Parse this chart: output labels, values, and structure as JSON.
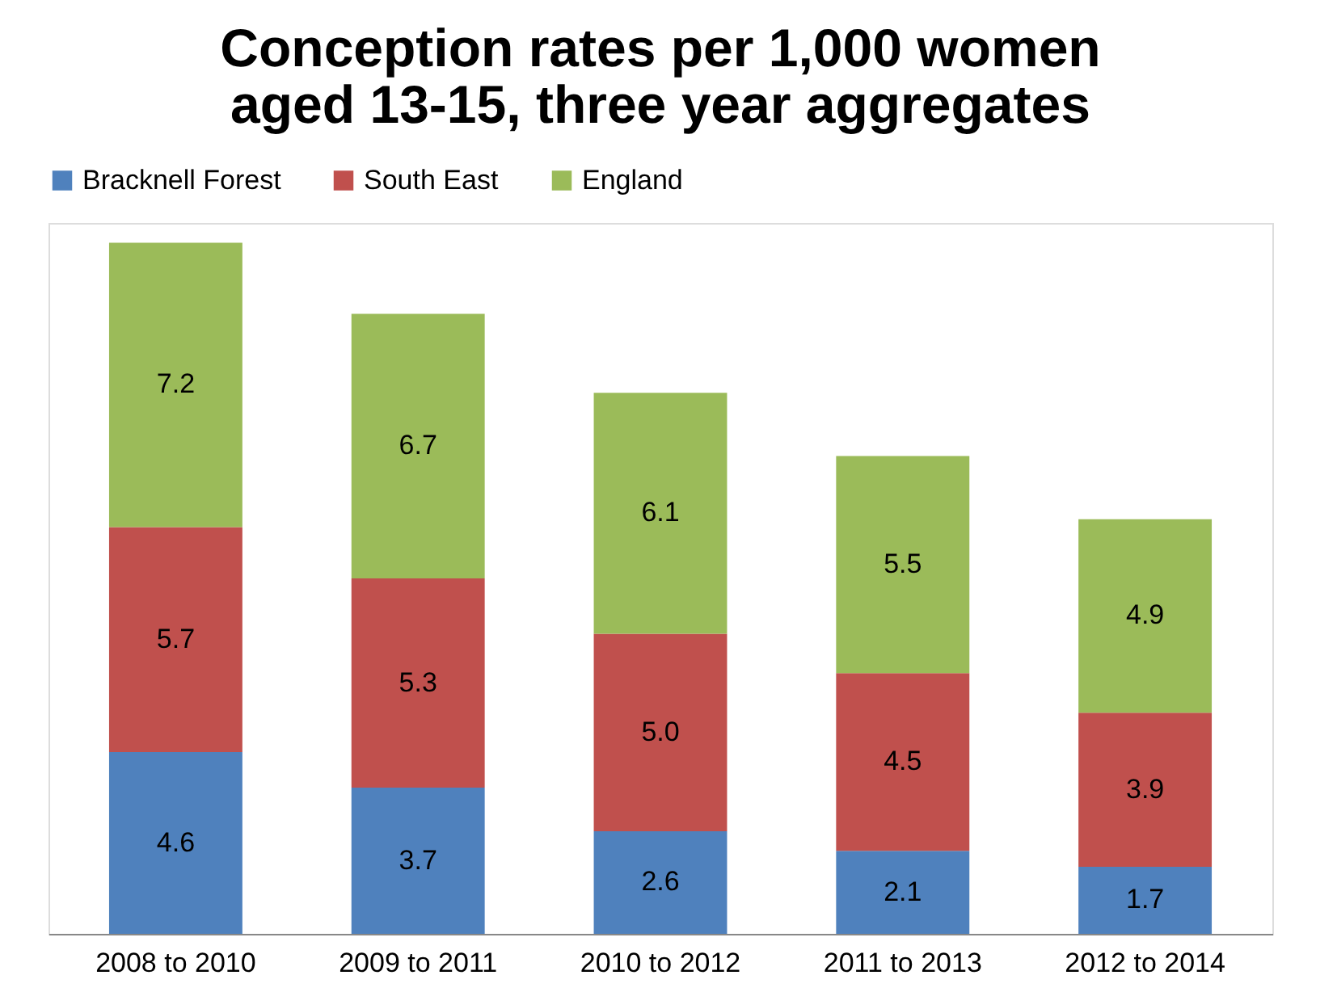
{
  "chart_data": {
    "type": "bar",
    "title": "Conception rates per 1,000 women aged 13-15, three year aggregates",
    "categories": [
      "2008 to 2010",
      "2009 to 2011",
      "2010 to 2012",
      "2011 to 2013",
      "2012 to 2014"
    ],
    "series": [
      {
        "name": "Bracknell Forest",
        "color": "#4f81bd",
        "values": [
          4.6,
          3.7,
          2.6,
          2.1,
          1.7
        ],
        "value_labels": [
          "4.6",
          "3.7",
          "2.6",
          "2.1",
          "1.7"
        ]
      },
      {
        "name": "South East",
        "color": "#c0504d",
        "values": [
          5.7,
          5.3,
          5.0,
          4.5,
          3.9
        ],
        "value_labels": [
          "5.7",
          "5.3",
          "5.0",
          "4.5",
          "3.9"
        ]
      },
      {
        "name": "England",
        "color": "#9bbb59",
        "values": [
          7.2,
          6.7,
          6.1,
          5.5,
          4.9
        ],
        "value_labels": [
          "7.2",
          "6.7",
          "6.1",
          "5.5",
          "4.9"
        ]
      }
    ],
    "stacked": true,
    "legend": "top",
    "grid": false,
    "tick_labels": "x"
  }
}
